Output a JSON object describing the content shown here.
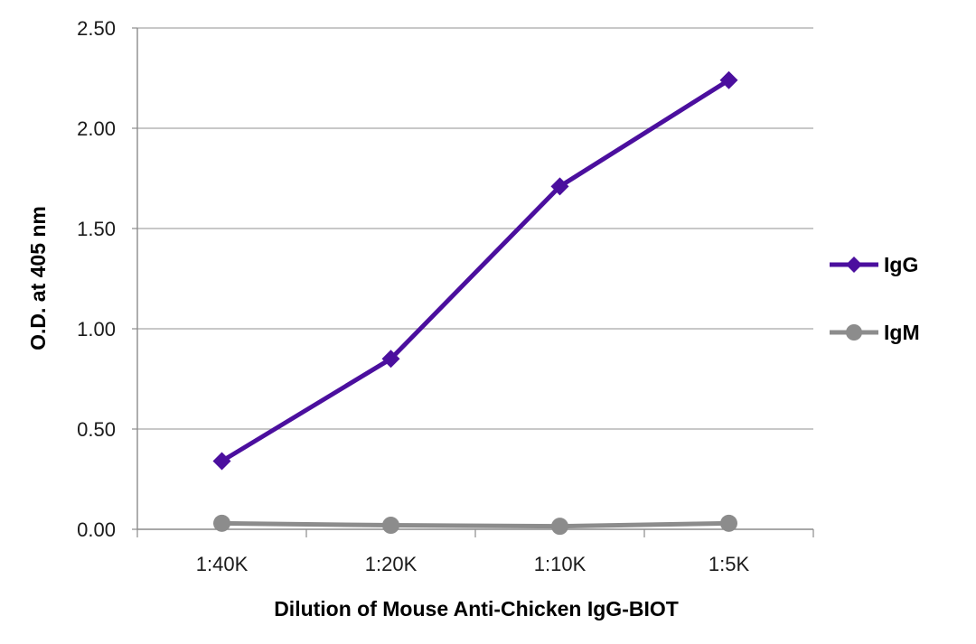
{
  "chart_data": {
    "type": "line",
    "title": "",
    "xlabel": "Dilution of Mouse Anti-Chicken IgG-BIOT",
    "ylabel": "O.D. at 405 nm",
    "categories": [
      "1:40K",
      "1:20K",
      "1:10K",
      "1:5K"
    ],
    "ylim": [
      0,
      2.5
    ],
    "yticks": [
      "0.00",
      "0.50",
      "1.00",
      "1.50",
      "2.00",
      "2.50"
    ],
    "grid": true,
    "legend_position": "right",
    "series": [
      {
        "name": "IgG",
        "values": [
          0.34,
          0.85,
          1.71,
          2.24
        ],
        "color": "#4b0f9e",
        "marker": "diamond"
      },
      {
        "name": "IgM",
        "values": [
          0.03,
          0.02,
          0.015,
          0.03
        ],
        "color": "#8c8c8c",
        "marker": "circle"
      }
    ]
  }
}
